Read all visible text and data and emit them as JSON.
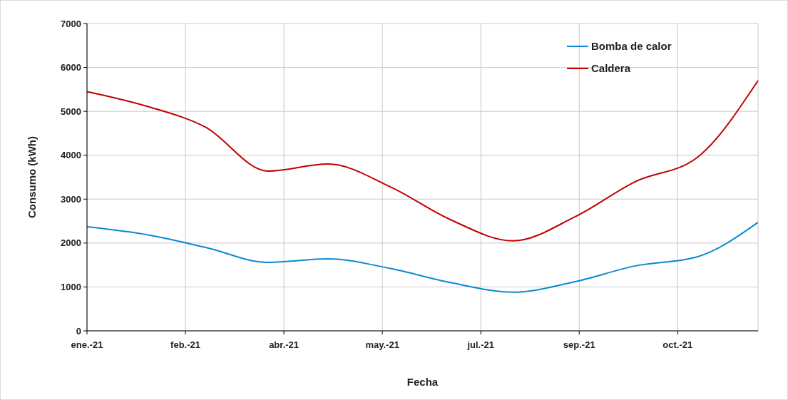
{
  "chart_data": {
    "type": "line",
    "xlabel": "Fecha",
    "ylabel": "Consumo (kWh)",
    "x": [
      "2021-01-01",
      "2021-02-01",
      "2021-03-01",
      "2021-04-01",
      "2021-05-01",
      "2021-06-01",
      "2021-07-01",
      "2021-08-01",
      "2021-09-01",
      "2021-10-01",
      "2021-11-01",
      "2021-12-01"
    ],
    "series": [
      {
        "name": "Bomba de calor",
        "color": "#0a8ad0",
        "values": [
          2370,
          2180,
          1900,
          1560,
          1640,
          1420,
          1100,
          880,
          1120,
          1480,
          1690,
          2470
        ]
      },
      {
        "name": "Caldera",
        "color": "#c00000",
        "values": [
          5450,
          5100,
          4640,
          3640,
          3800,
          3280,
          2530,
          2050,
          2600,
          3400,
          3960,
          5700
        ]
      }
    ],
    "xlim": [
      "2021-01-01",
      "2021-12-01"
    ],
    "xticks": [
      {
        "value": "2021-01-01",
        "label": "ene.-21"
      },
      {
        "value": "2021-02-19",
        "label": "feb.-21"
      },
      {
        "value": "2021-04-09",
        "label": "abr.-21"
      },
      {
        "value": "2021-05-28",
        "label": "may.-21"
      },
      {
        "value": "2021-07-16",
        "label": "jul.-21"
      },
      {
        "value": "2021-09-03",
        "label": "sep.-21"
      },
      {
        "value": "2021-10-22",
        "label": "oct.-21"
      }
    ],
    "ylim": [
      0,
      7000
    ],
    "yticks": [
      0,
      1000,
      2000,
      3000,
      4000,
      5000,
      6000,
      7000
    ],
    "grid": true,
    "legend": "top right",
    "marker": "none",
    "line_style": "solid"
  }
}
